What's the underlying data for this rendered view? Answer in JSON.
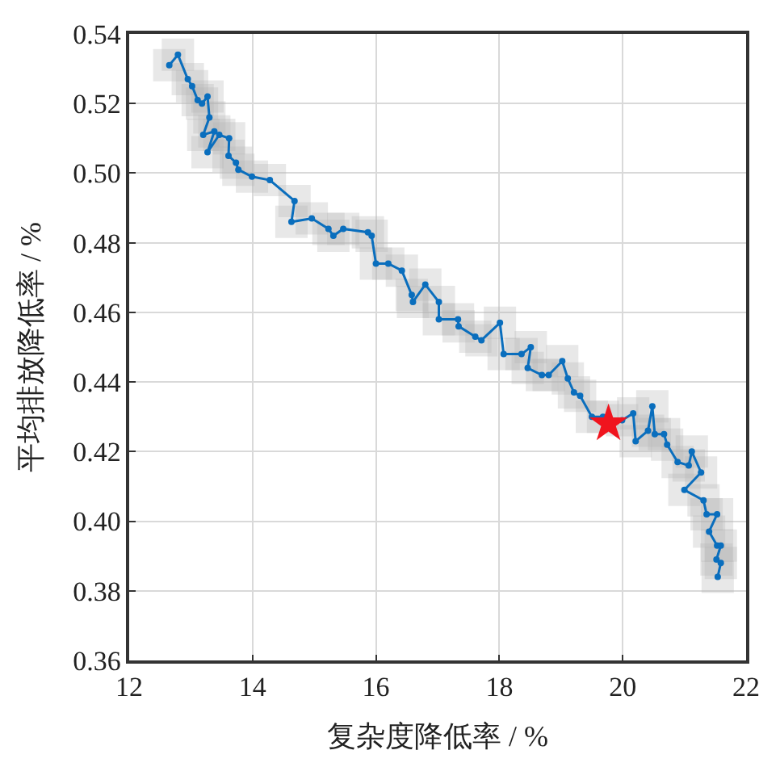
{
  "chart_data": {
    "type": "line",
    "xlabel": "复杂度降低率 / %",
    "ylabel": "平均排放降低率 / %",
    "xlim": [
      12,
      22
    ],
    "ylim": [
      0.36,
      0.54
    ],
    "xticks": [
      12,
      14,
      16,
      18,
      20,
      22
    ],
    "yticks": [
      0.36,
      0.38,
      {
        "value": 0.4,
        "label": "0.40"
      },
      0.42,
      0.44,
      0.46,
      0.48,
      {
        "value": 0.5,
        "label": "0.50"
      },
      0.52,
      0.54
    ],
    "grid": true,
    "x": [
      12.65,
      12.79,
      12.95,
      13.02,
      13.11,
      13.18,
      13.27,
      13.3,
      13.2,
      13.38,
      13.27,
      13.46,
      13.62,
      13.61,
      13.73,
      13.77,
      13.99,
      14.28,
      14.68,
      14.63,
      14.96,
      15.23,
      15.31,
      15.47,
      15.87,
      15.93,
      16.0,
      16.2,
      16.42,
      16.58,
      16.6,
      16.8,
      17.02,
      17.02,
      17.33,
      17.34,
      17.61,
      17.71,
      18.01,
      18.07,
      18.36,
      18.51,
      18.46,
      18.69,
      18.8,
      19.02,
      19.11,
      19.21,
      19.31,
      19.5,
      19.68,
      19.99,
      20.17,
      20.21,
      20.41,
      20.48,
      20.52,
      20.67,
      20.72,
      20.89,
      21.07,
      21.12,
      21.27,
      21.0,
      21.31,
      21.36,
      21.53,
      21.4,
      21.53,
      21.59,
      21.52,
      21.59,
      21.54
    ],
    "series": [
      {
        "type": "scatter",
        "marker": "square",
        "color": "#b4b4b4",
        "values": [
          0.531,
          0.534,
          0.527,
          0.525,
          0.521,
          0.52,
          0.522,
          0.516,
          0.511,
          0.512,
          0.506,
          0.511,
          0.51,
          0.505,
          0.503,
          0.501,
          0.499,
          0.498,
          0.492,
          0.486,
          0.487,
          0.484,
          0.482,
          0.484,
          0.483,
          0.482,
          0.474,
          0.474,
          0.472,
          0.465,
          0.463,
          0.468,
          0.463,
          0.458,
          0.458,
          0.456,
          0.453,
          0.452,
          0.457,
          0.448,
          0.448,
          0.45,
          0.444,
          0.442,
          0.442,
          0.446,
          0.441,
          0.437,
          0.436,
          0.43,
          0.43,
          0.429,
          0.431,
          0.423,
          0.426,
          0.433,
          0.425,
          0.425,
          0.422,
          0.417,
          0.416,
          0.42,
          0.414,
          0.409,
          0.406,
          0.402,
          0.402,
          0.397,
          0.393,
          0.393,
          0.389,
          0.388,
          0.384
        ]
      },
      {
        "marker": "circle",
        "color": "#0a6ebd",
        "values": [
          0.531,
          0.534,
          0.527,
          0.525,
          0.521,
          0.52,
          0.522,
          0.516,
          0.511,
          0.512,
          0.506,
          0.511,
          0.51,
          0.505,
          0.503,
          0.501,
          0.499,
          0.498,
          0.492,
          0.486,
          0.487,
          0.484,
          0.482,
          0.484,
          0.483,
          0.482,
          0.474,
          0.474,
          0.472,
          0.465,
          0.463,
          0.468,
          0.463,
          0.458,
          0.458,
          0.456,
          0.453,
          0.452,
          0.457,
          0.448,
          0.448,
          0.45,
          0.444,
          0.442,
          0.442,
          0.446,
          0.441,
          0.437,
          0.436,
          0.43,
          0.43,
          0.429,
          0.431,
          0.423,
          0.426,
          0.433,
          0.425,
          0.425,
          0.422,
          0.417,
          0.416,
          0.42,
          0.414,
          0.409,
          0.406,
          0.402,
          0.402,
          0.397,
          0.393,
          0.393,
          0.389,
          0.388,
          0.384
        ]
      },
      {
        "type": "scatter",
        "marker": "star",
        "color": "#f0141e",
        "x": [
          19.77
        ],
        "values": [
          0.428
        ]
      }
    ]
  }
}
